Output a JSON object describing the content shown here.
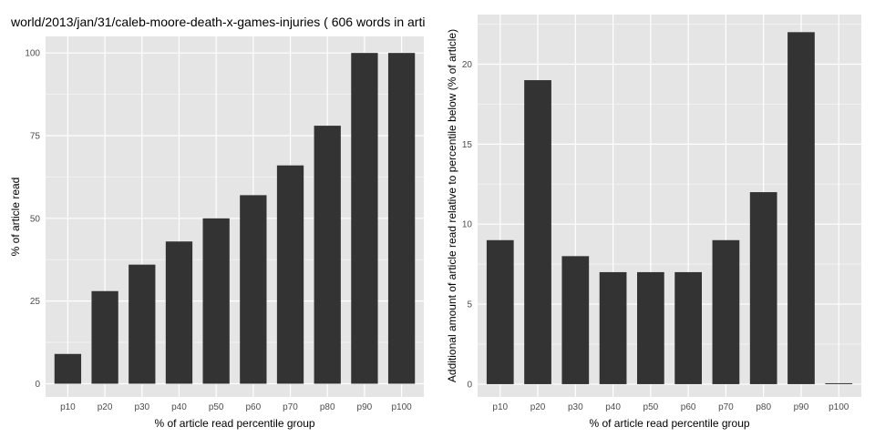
{
  "chart_data": [
    {
      "type": "bar",
      "title": "world/2013/jan/31/caleb-moore-death-x-games-injuries ( 606 words in arti",
      "xlabel": "% of article read percentile group",
      "ylabel": "% of article read",
      "categories": [
        "p10",
        "p20",
        "p30",
        "p40",
        "p50",
        "p60",
        "p70",
        "p80",
        "p90",
        "p100"
      ],
      "values": [
        9,
        28,
        36,
        43,
        50,
        57,
        66,
        78,
        100,
        100
      ],
      "ylim": [
        -4,
        105
      ],
      "yticks": [
        "0",
        "25",
        "50",
        "75",
        "100"
      ],
      "grid": true,
      "colors": {
        "panel": "#e5e5e5",
        "bar": "#333333",
        "grid": "#ffffff",
        "grid_minor": "#f2f2f2"
      }
    },
    {
      "type": "bar",
      "title": "",
      "xlabel": "% of article read percentile group",
      "ylabel": "Additional amount of article read relative to percentile below (% of article)",
      "categories": [
        "p10",
        "p20",
        "p30",
        "p40",
        "p50",
        "p60",
        "p70",
        "p80",
        "p90",
        "p100"
      ],
      "values": [
        9,
        19,
        8,
        7,
        7,
        7,
        9,
        12,
        22,
        0
      ],
      "ylim": [
        -0.8,
        23.1
      ],
      "yticks": [
        "0",
        "5",
        "10",
        "15",
        "20"
      ],
      "grid": true,
      "colors": {
        "panel": "#e5e5e5",
        "bar": "#333333",
        "grid": "#ffffff",
        "grid_minor": "#f2f2f2"
      }
    }
  ]
}
